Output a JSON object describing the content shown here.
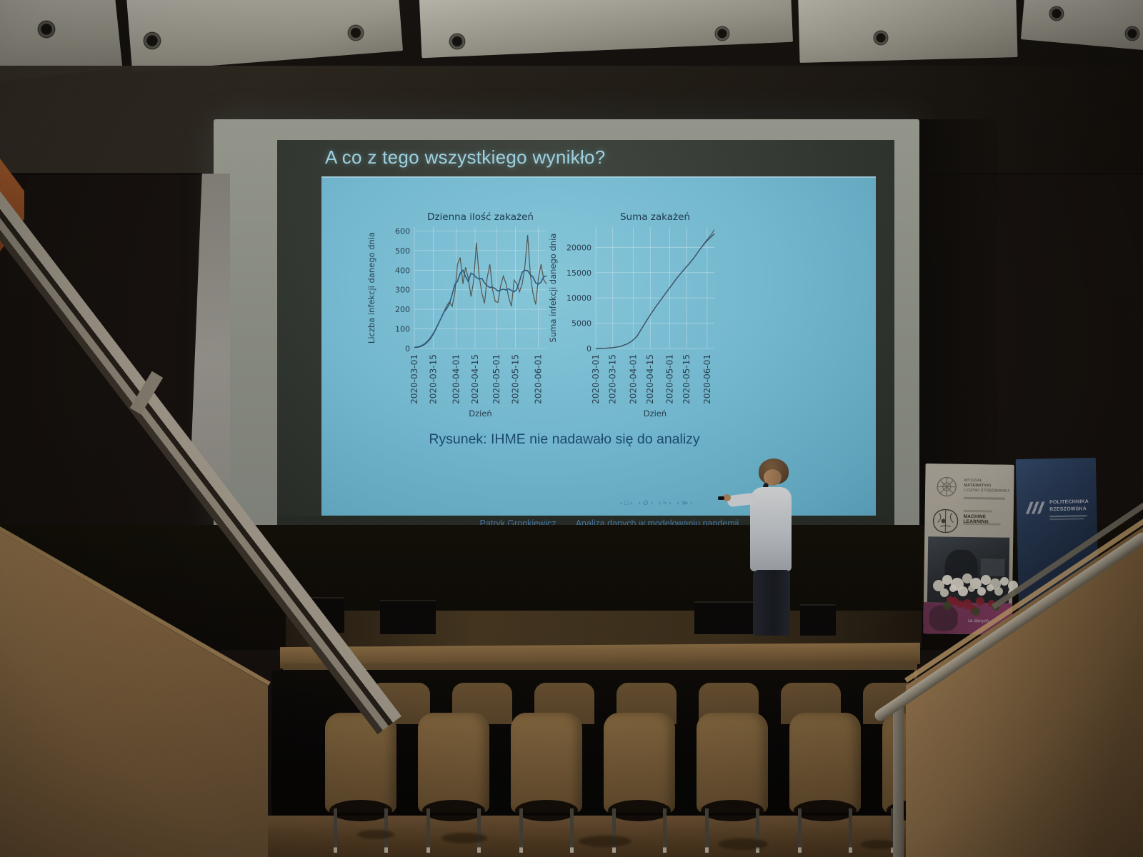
{
  "slide": {
    "title": "A co z tego wszystkiego wynikło?",
    "caption": "Rysunek: IHME nie nadawało się do analizy",
    "navigation_symbols": "‹□› ‹∅› ‹≈› ‹≫›",
    "footer": {
      "author": "Patryk Gronkiewicz",
      "talk_title": "Analiza danych w modelowaniu pandemii"
    },
    "colors": {
      "projection_background": "#79c2db",
      "title_text": "#a6dcec",
      "caption_text": "#1d4d72",
      "footer_text": "#4c7da8"
    }
  },
  "chart_data": [
    {
      "type": "line",
      "title": "Dzienna ilość zakażeń",
      "xlabel": "Dzień",
      "ylabel": "Liczba infekcji danego dnia",
      "ylim": [
        0,
        620
      ],
      "yticks": [
        0,
        100,
        200,
        300,
        400,
        500,
        600
      ],
      "xtick_labels": [
        "2020-03-01",
        "2020-03-15",
        "2020-04-01",
        "2020-04-15",
        "2020-05-01",
        "2020-05-15",
        "2020-06-01"
      ],
      "xtick_days": [
        0,
        14,
        31,
        45,
        61,
        75,
        92
      ],
      "x_span_days": 98,
      "sample_step_days": 2,
      "daily_infections": [
        4,
        5,
        8,
        14,
        22,
        35,
        50,
        72,
        98,
        128,
        158,
        188,
        218,
        238,
        215,
        280,
        430,
        465,
        330,
        415,
        360,
        265,
        345,
        540,
        375,
        285,
        230,
        360,
        430,
        300,
        240,
        235,
        320,
        370,
        330,
        260,
        215,
        350,
        330,
        290,
        330,
        420,
        580,
        380,
        280,
        225,
        360,
        430,
        350,
        330
      ],
      "grid": true
    },
    {
      "type": "line",
      "title": "Suma zakażeń",
      "xlabel": "Dzień",
      "ylabel": "Suma infekcji danego dnia",
      "ylim": [
        0,
        24000
      ],
      "yticks": [
        0,
        5000,
        10000,
        15000,
        20000
      ],
      "xtick_labels": [
        "2020-03-01",
        "2020-03-15",
        "2020-04-01",
        "2020-04-15",
        "2020-05-01",
        "2020-05-15",
        "2020-06-01"
      ],
      "xtick_days": [
        0,
        14,
        31,
        45,
        61,
        75,
        92
      ],
      "x_span_days": 98,
      "cumulative": [
        [
          0,
          20
        ],
        [
          8,
          60
        ],
        [
          14,
          150
        ],
        [
          20,
          400
        ],
        [
          26,
          900
        ],
        [
          30,
          1500
        ],
        [
          34,
          2400
        ],
        [
          38,
          4000
        ],
        [
          42,
          5500
        ],
        [
          46,
          7000
        ],
        [
          50,
          8400
        ],
        [
          54,
          9700
        ],
        [
          58,
          11000
        ],
        [
          62,
          12300
        ],
        [
          66,
          13600
        ],
        [
          70,
          14800
        ],
        [
          74,
          15900
        ],
        [
          78,
          17000
        ],
        [
          82,
          18200
        ],
        [
          86,
          19600
        ],
        [
          90,
          20800
        ],
        [
          94,
          21800
        ],
        [
          98,
          22700
        ]
      ],
      "forecast_tail": [
        [
          88,
          20300
        ],
        [
          92,
          21500
        ],
        [
          95,
          22400
        ],
        [
          98,
          23500
        ]
      ],
      "grid": true
    }
  ],
  "banners": {
    "left": {
      "faculty_lines": [
        "WYDZIAŁ",
        "MATEMATYKI",
        "I FIZYKI STOSOWANEJ"
      ],
      "ml_text": "MACHINE LEARNING",
      "pink_text": "za danych"
    },
    "right": {
      "name_line1": "POLITECHNIKA",
      "name_line2": "RZESZOWSKA"
    }
  }
}
